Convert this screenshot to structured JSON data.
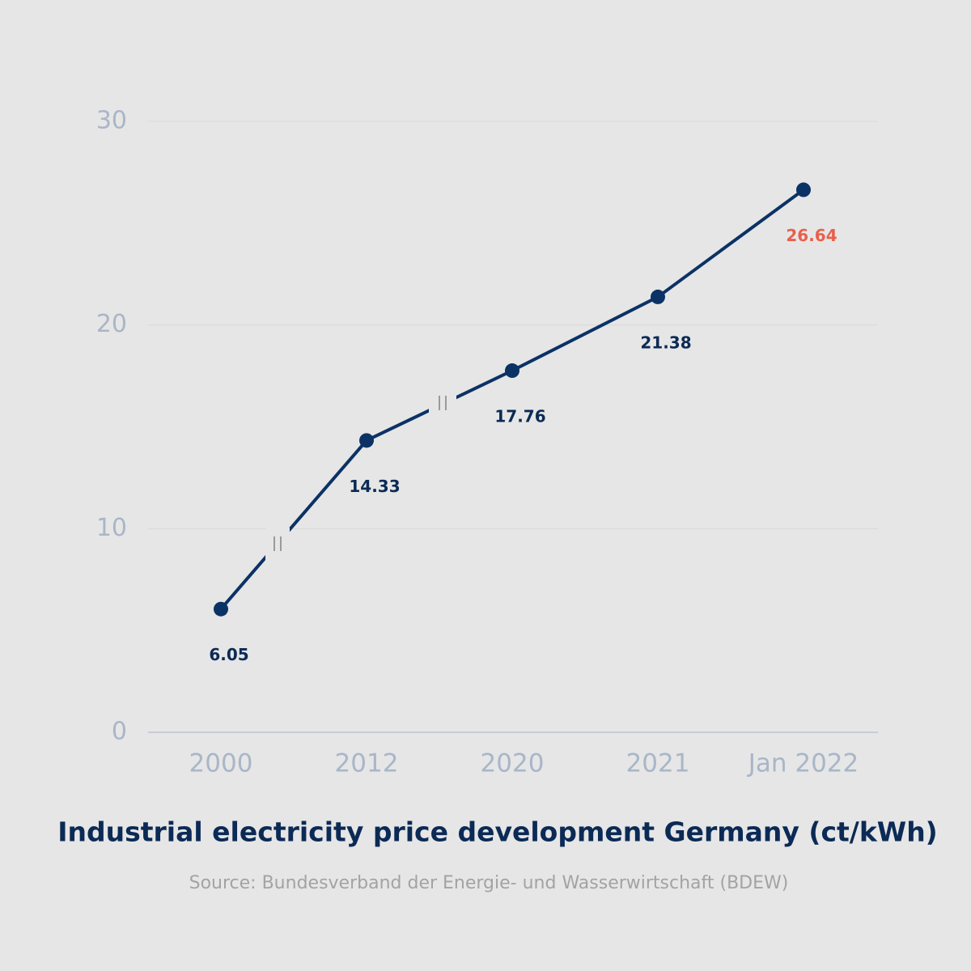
{
  "chart_data": {
    "type": "line",
    "title": "Industrial electricity price development Germany (ct/kWh)",
    "source": "Source: Bundesverband der Energie- und Wasserwirtschaft (BDEW)",
    "categories": [
      "2000",
      "2012",
      "2020",
      "2021",
      "Jan 2022"
    ],
    "values": [
      6.05,
      14.33,
      17.76,
      21.38,
      26.64
    ],
    "color": "#0b3265",
    "value_label_colors": [
      "#0b2a55",
      "#0b2a55",
      "#0b2a55",
      "#0b2a55",
      "#e8604c"
    ],
    "ylim": [
      0,
      30
    ],
    "yticks": [
      0,
      10,
      20,
      30
    ],
    "grid": true
  }
}
